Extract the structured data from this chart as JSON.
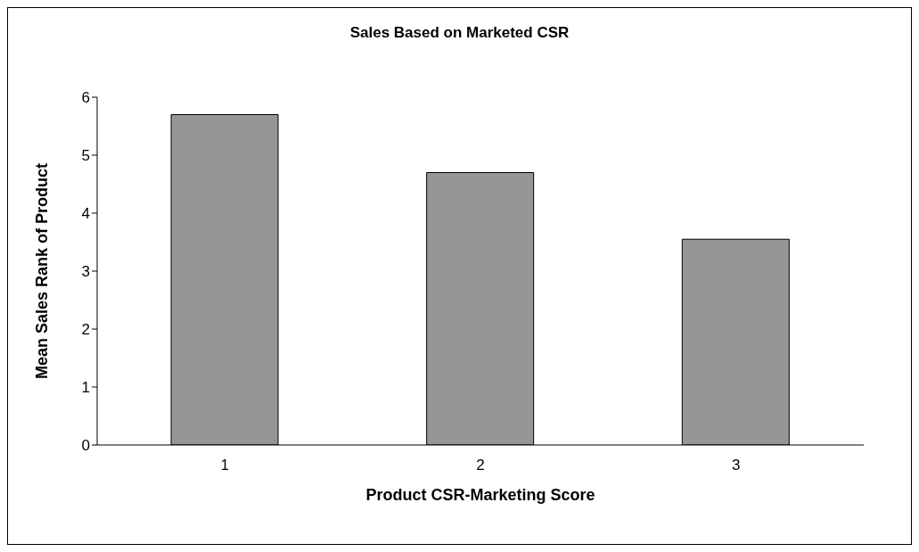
{
  "chart_data": {
    "type": "bar",
    "title": "Sales Based on Marketed CSR",
    "xlabel": "Product CSR-Marketing Score",
    "ylabel": "Mean Sales Rank of Product",
    "categories": [
      "1",
      "2",
      "3"
    ],
    "values": [
      5.7,
      4.7,
      3.55
    ],
    "color": "#969696",
    "ylim": [
      0,
      6
    ],
    "yticks": [
      0,
      1,
      2,
      3,
      4,
      5,
      6
    ],
    "grid": false,
    "legend": false
  }
}
